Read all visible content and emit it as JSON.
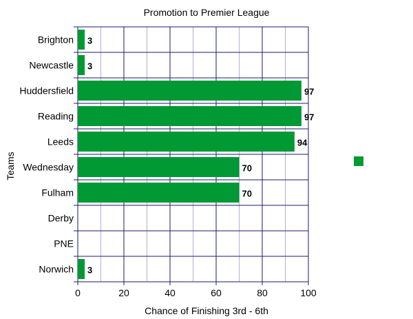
{
  "chart_data": {
    "type": "bar",
    "orientation": "horizontal",
    "title": "Promotion to Premier League",
    "xlabel": "Chance  of Finishing 3rd - 6th",
    "ylabel": "Teams",
    "categories": [
      "Brighton",
      "Newcastle",
      "Huddersfield",
      "Reading",
      "Leeds",
      "Wednesday",
      "Fulham",
      "Derby",
      "PNE",
      "Norwich"
    ],
    "values": [
      3,
      3,
      97,
      97,
      94,
      70,
      70,
      0,
      0,
      3
    ],
    "data_labels": [
      "3",
      "3",
      "97",
      "97",
      "94",
      "70",
      "70",
      "",
      "",
      "3"
    ],
    "xlim": [
      0,
      100
    ],
    "xticks": [
      "0",
      "20",
      "40",
      "60",
      "80",
      "100"
    ],
    "grid": true,
    "legend": "right, single green swatch without label",
    "colors": {
      "bar": "#009933",
      "grid_major": "#1a1a6e",
      "grid_minor": "#b0b0d8"
    }
  }
}
